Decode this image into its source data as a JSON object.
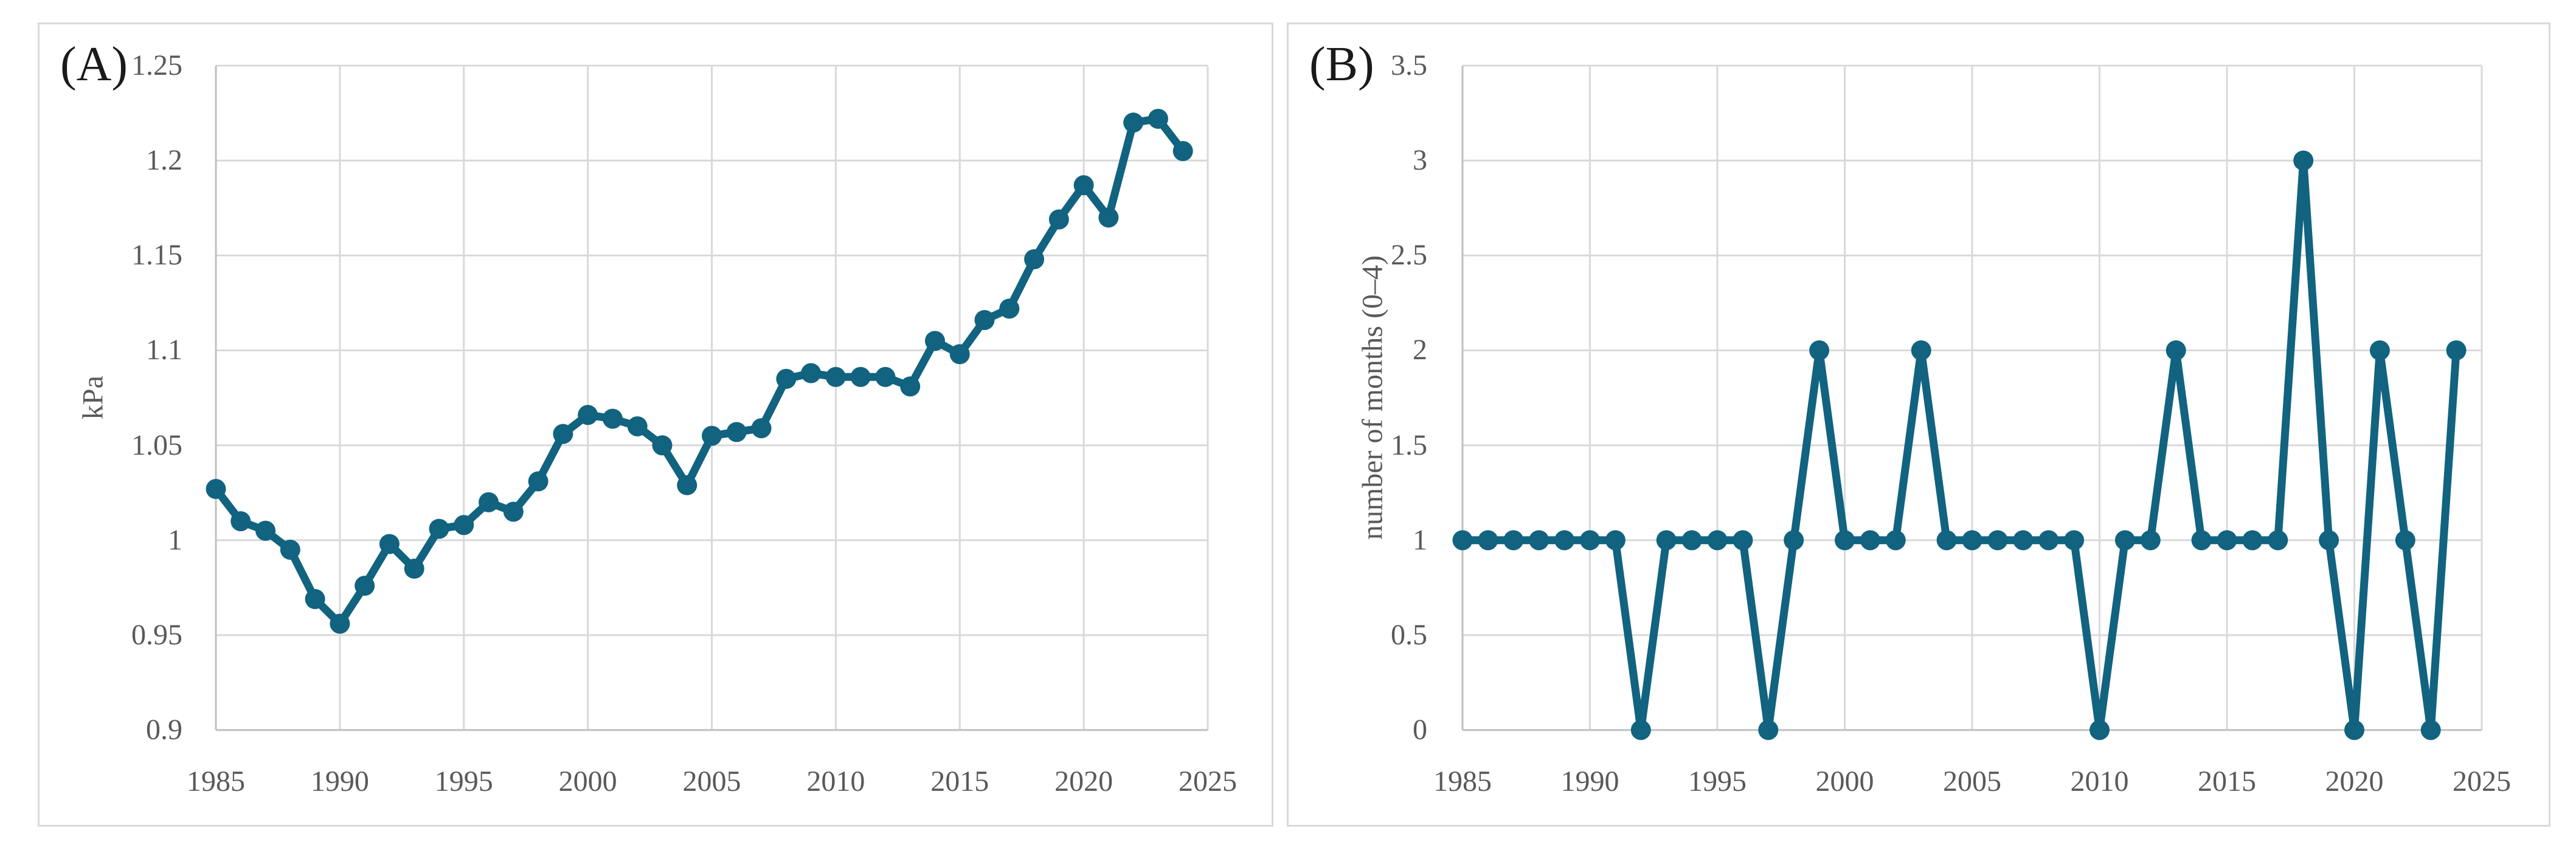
{
  "figure": {
    "panels": [
      "A",
      "B"
    ]
  },
  "colors": {
    "line": "#116380",
    "marker": "#116380",
    "gridline": "#d9d9d9",
    "axis_line": "#bfbfbf",
    "tick_text": "#595959",
    "panel_label_text": "#1a1a1a",
    "panel_border": "#d9d9d9",
    "background": "#ffffff"
  },
  "chart_data": [
    {
      "type": "line",
      "panel_label": "(A)",
      "title": "",
      "xlabel": "",
      "ylabel": "kPa",
      "legend": "none",
      "grid": true,
      "marker": "circle",
      "xlim": [
        1985,
        2025
      ],
      "ylim": [
        0.9,
        1.25
      ],
      "x_ticks": [
        1985,
        1990,
        1995,
        2000,
        2005,
        2010,
        2015,
        2020,
        2025
      ],
      "x_tick_labels": [
        "1985",
        "1990",
        "1995",
        "2000",
        "2005",
        "2010",
        "2015",
        "2020",
        "2025"
      ],
      "y_ticks": [
        0.9,
        0.95,
        1.0,
        1.05,
        1.1,
        1.15,
        1.2,
        1.25
      ],
      "y_tick_labels": [
        "0.9",
        "0.95",
        "1",
        "1.05",
        "1.1",
        "1.15",
        "1.2",
        "1.25"
      ],
      "x": [
        1985,
        1986,
        1987,
        1988,
        1989,
        1990,
        1991,
        1992,
        1993,
        1994,
        1995,
        1996,
        1997,
        1998,
        1999,
        2000,
        2001,
        2002,
        2003,
        2004,
        2005,
        2006,
        2007,
        2008,
        2009,
        2010,
        2011,
        2012,
        2013,
        2014,
        2015,
        2016,
        2017,
        2018,
        2019,
        2020,
        2021,
        2022,
        2023,
        2024
      ],
      "values": [
        1.027,
        1.01,
        1.005,
        0.995,
        0.969,
        0.956,
        0.976,
        0.998,
        0.985,
        1.006,
        1.008,
        1.02,
        1.015,
        1.031,
        1.056,
        1.066,
        1.064,
        1.06,
        1.05,
        1.029,
        1.055,
        1.057,
        1.059,
        1.085,
        1.088,
        1.086,
        1.086,
        1.086,
        1.081,
        1.105,
        1.098,
        1.116,
        1.122,
        1.148,
        1.169,
        1.187,
        1.17,
        1.22,
        1.222,
        1.205
      ]
    },
    {
      "type": "line",
      "panel_label": "(B)",
      "title": "",
      "xlabel": "",
      "ylabel": "number of months (0–4)",
      "legend": "none",
      "grid": true,
      "marker": "circle",
      "xlim": [
        1985,
        2025
      ],
      "ylim": [
        0,
        3.5
      ],
      "x_ticks": [
        1985,
        1990,
        1995,
        2000,
        2005,
        2010,
        2015,
        2020,
        2025
      ],
      "x_tick_labels": [
        "1985",
        "1990",
        "1995",
        "2000",
        "2005",
        "2010",
        "2015",
        "2020",
        "2025"
      ],
      "y_ticks": [
        0,
        0.5,
        1,
        1.5,
        2,
        2.5,
        3,
        3.5
      ],
      "y_tick_labels": [
        "0",
        "0.5",
        "1",
        "1.5",
        "2",
        "2.5",
        "3",
        "3.5"
      ],
      "x": [
        1985,
        1986,
        1987,
        1988,
        1989,
        1990,
        1991,
        1992,
        1993,
        1994,
        1995,
        1996,
        1997,
        1998,
        1999,
        2000,
        2001,
        2002,
        2003,
        2004,
        2005,
        2006,
        2007,
        2008,
        2009,
        2010,
        2011,
        2012,
        2013,
        2014,
        2015,
        2016,
        2017,
        2018,
        2019,
        2020,
        2021,
        2022,
        2023,
        2024
      ],
      "values": [
        1,
        1,
        1,
        1,
        1,
        1,
        1,
        0,
        1,
        1,
        1,
        1,
        0,
        1,
        2,
        1,
        1,
        1,
        2,
        1,
        1,
        1,
        1,
        1,
        1,
        0,
        1,
        1,
        2,
        1,
        1,
        1,
        1,
        3,
        1,
        0,
        2,
        1,
        0,
        2
      ]
    }
  ]
}
